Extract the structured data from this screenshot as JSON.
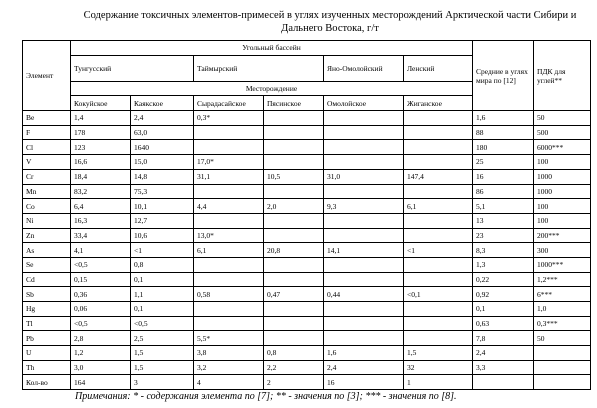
{
  "title": "Содержание токсичных элементов-примесей в углях изученных месторождений Арктической части Сибири и Дальнего Востока, г/т",
  "table": {
    "header": {
      "element": "Элемент",
      "basin": "Угольный бассейн",
      "basins": [
        "Тунгусский",
        "Таймырский",
        "Яно-Омолойский",
        "Ленский"
      ],
      "deposit_label": "Месторождение",
      "deposits": [
        "Кокуйское",
        "Каякское",
        "Сырадасайское",
        "Пясинское",
        "Омолойское",
        "Жиганское"
      ],
      "world_mean": "Средние в углях мира по [12]",
      "pdk": "ПДК для углей**"
    },
    "rows": [
      [
        "Be",
        "1,4",
        "2,4",
        "0,3*",
        null,
        null,
        null,
        "1,6",
        "50"
      ],
      [
        "F",
        "178",
        "63,0",
        null,
        null,
        null,
        null,
        "88",
        "500"
      ],
      [
        "Cl",
        "123",
        "1640",
        null,
        null,
        null,
        null,
        "180",
        "6000***"
      ],
      [
        "V",
        "16,6",
        "15,0",
        "17,0*",
        null,
        null,
        null,
        "25",
        "100"
      ],
      [
        "Cr",
        "18,4",
        "14,8",
        "31,1",
        "10,5",
        "31,0",
        "147,4",
        "16",
        "1000"
      ],
      [
        "Mn",
        "83,2",
        "75,3",
        null,
        null,
        null,
        null,
        "86",
        "1000"
      ],
      [
        "Co",
        "6,4",
        "10,1",
        "4,4",
        "2,0",
        "9,3",
        "6,1",
        "5,1",
        "100"
      ],
      [
        "Ni",
        "16,3",
        "12,7",
        null,
        null,
        null,
        null,
        "13",
        "100"
      ],
      [
        "Zn",
        "33,4",
        "10,6",
        "13,0*",
        null,
        null,
        null,
        "23",
        "200***"
      ],
      [
        "As",
        "4,1",
        "<1",
        "6,1",
        "20,8",
        "14,1",
        "<1",
        "8,3",
        "300"
      ],
      [
        "Se",
        "<0,5",
        "0,8",
        null,
        null,
        null,
        null,
        "1,3",
        "1000***"
      ],
      [
        "Cd",
        "0,15",
        "0,1",
        null,
        null,
        null,
        null,
        "0,22",
        "1,2***"
      ],
      [
        "Sb",
        "0,36",
        "1,1",
        "0,58",
        "0,47",
        "0,44",
        "<0,1",
        "0,92",
        "6***"
      ],
      [
        "Hg",
        "0,06",
        "0,1",
        null,
        null,
        null,
        null,
        "0,1",
        "1,0"
      ],
      [
        "Tl",
        "<0,5",
        "<0,5",
        null,
        null,
        null,
        null,
        "0,63",
        "0,3***"
      ],
      [
        "Pb",
        "2,8",
        "2,5",
        "5,5*",
        null,
        null,
        null,
        "7,8",
        "50"
      ],
      [
        "U",
        "1,2",
        "1,5",
        "3,8",
        "0,8",
        "1,6",
        "1,5",
        "2,4",
        null
      ],
      [
        "Th",
        "3,0",
        "1,5",
        "3,2",
        "2,2",
        "2,4",
        "32",
        "3,3",
        null
      ],
      [
        "Кол-во",
        "164",
        "3",
        "4",
        "2",
        "16",
        "1",
        null,
        null
      ]
    ]
  },
  "note": "Примечания: * - содержания элемента по [7]; ** - значения по [3]; *** - значения по [8]."
}
